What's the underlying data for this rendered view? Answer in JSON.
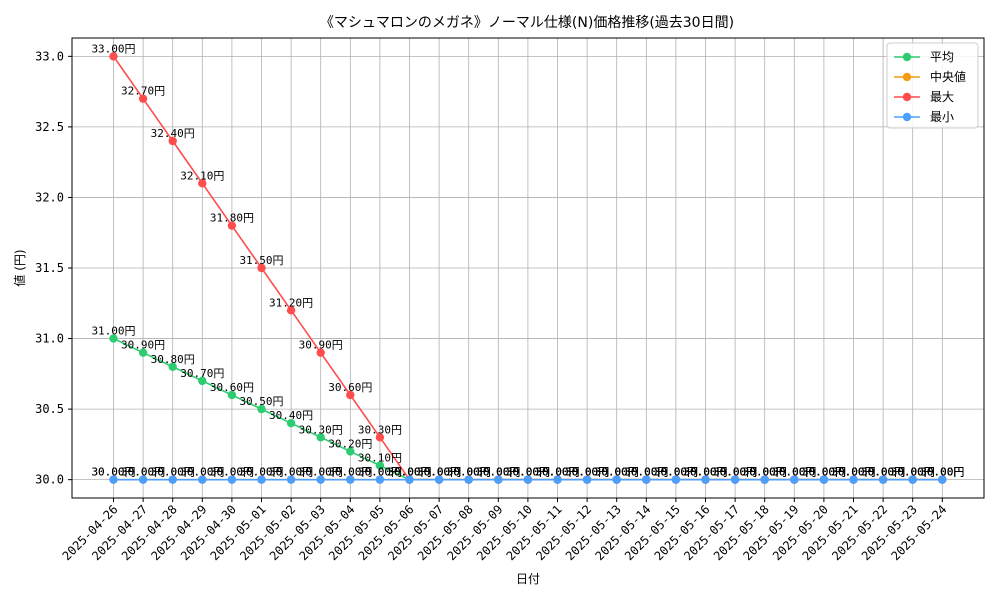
{
  "chart_data": {
    "type": "line",
    "title": "《マシュマロンのメガネ》ノーマル仕様(N)価格推移(過去30日間)",
    "xlabel": "日付",
    "ylabel": "値 (円)",
    "ylim": [
      29.87,
      33.13
    ],
    "yticks": [
      30.0,
      30.5,
      31.0,
      31.5,
      32.0,
      32.5,
      33.0
    ],
    "ytick_labels": [
      "30.0",
      "30.5",
      "31.0",
      "31.5",
      "32.0",
      "32.5",
      "33.0"
    ],
    "grid": true,
    "legend_position": "top-right",
    "value_suffix": "円",
    "categories": [
      "2025-04-26",
      "2025-04-27",
      "2025-04-28",
      "2025-04-29",
      "2025-04-30",
      "2025-05-01",
      "2025-05-02",
      "2025-05-03",
      "2025-05-04",
      "2025-05-05",
      "2025-05-06",
      "2025-05-07",
      "2025-05-08",
      "2025-05-09",
      "2025-05-10",
      "2025-05-11",
      "2025-05-12",
      "2025-05-13",
      "2025-05-14",
      "2025-05-15",
      "2025-05-16",
      "2025-05-17",
      "2025-05-18",
      "2025-05-19",
      "2025-05-20",
      "2025-05-21",
      "2025-05-22",
      "2025-05-23",
      "2025-05-24"
    ],
    "series": [
      {
        "name": "平均",
        "color": "#2ecc71",
        "values": [
          31.0,
          30.9,
          30.8,
          30.7,
          30.6,
          30.5,
          30.4,
          30.3,
          30.2,
          30.1,
          30.0,
          30.0,
          30.0,
          30.0,
          30.0,
          30.0,
          30.0,
          30.0,
          30.0,
          30.0,
          30.0,
          30.0,
          30.0,
          30.0,
          30.0,
          30.0,
          30.0,
          30.0,
          30.0
        ]
      },
      {
        "name": "中央値",
        "color": "#f39c12",
        "values": [
          30.0,
          30.0,
          30.0,
          30.0,
          30.0,
          30.0,
          30.0,
          30.0,
          30.0,
          30.0,
          30.0,
          30.0,
          30.0,
          30.0,
          30.0,
          30.0,
          30.0,
          30.0,
          30.0,
          30.0,
          30.0,
          30.0,
          30.0,
          30.0,
          30.0,
          30.0,
          30.0,
          30.0,
          30.0
        ]
      },
      {
        "name": "最大",
        "color": "#ff4d4d",
        "values": [
          33.0,
          32.7,
          32.4,
          32.1,
          31.8,
          31.5,
          31.2,
          30.9,
          30.6,
          30.3,
          30.0,
          30.0,
          30.0,
          30.0,
          30.0,
          30.0,
          30.0,
          30.0,
          30.0,
          30.0,
          30.0,
          30.0,
          30.0,
          30.0,
          30.0,
          30.0,
          30.0,
          30.0,
          30.0
        ]
      },
      {
        "name": "最小",
        "color": "#4d9fff",
        "values": [
          30.0,
          30.0,
          30.0,
          30.0,
          30.0,
          30.0,
          30.0,
          30.0,
          30.0,
          30.0,
          30.0,
          30.0,
          30.0,
          30.0,
          30.0,
          30.0,
          30.0,
          30.0,
          30.0,
          30.0,
          30.0,
          30.0,
          30.0,
          30.0,
          30.0,
          30.0,
          30.0,
          30.0,
          30.0
        ]
      }
    ]
  }
}
